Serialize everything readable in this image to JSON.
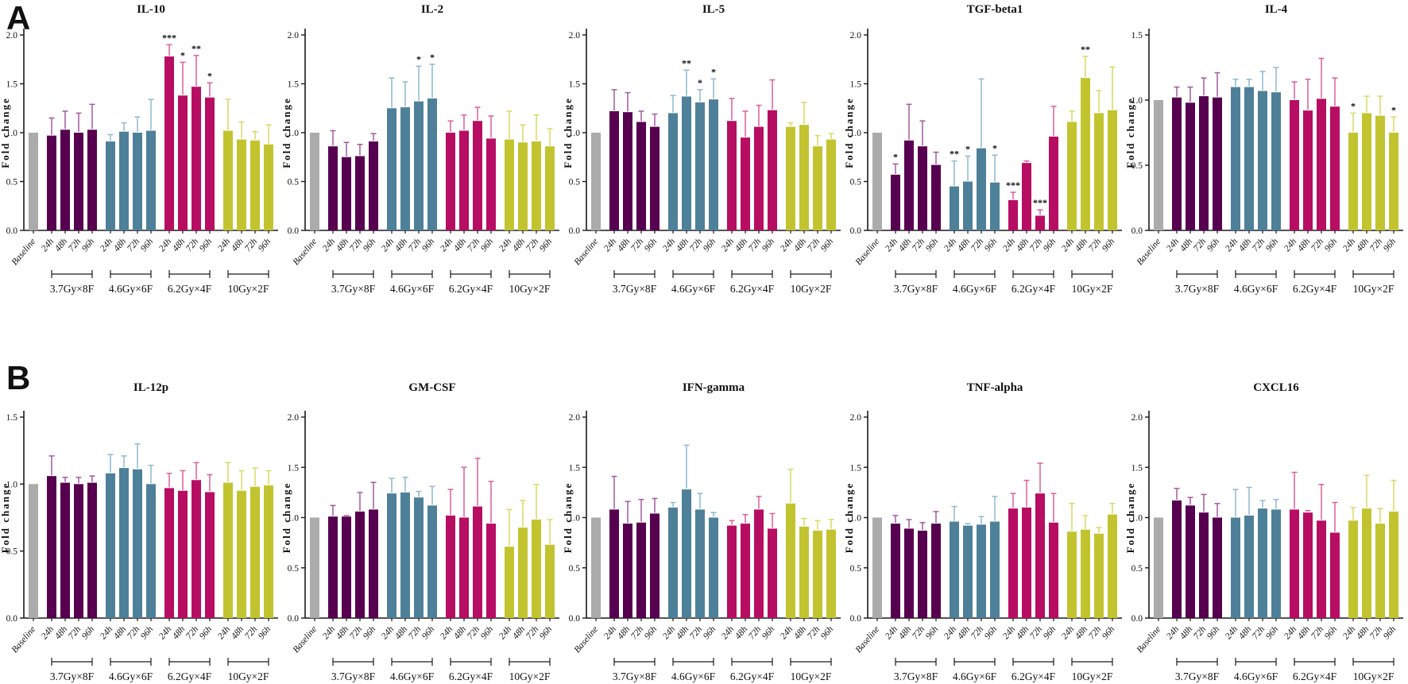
{
  "figure": {
    "panels": [
      {
        "label": "A"
      },
      {
        "label": "B"
      }
    ],
    "ylabel": "Fold change",
    "baseline_label": "Baseline",
    "time_labels": [
      "24h",
      "48h",
      "72h",
      "96h"
    ],
    "group_labels": [
      "3.7Gy×8F",
      "4.6Gy×6F",
      "6.2Gy×4F",
      "10Gy×2F"
    ],
    "colors": {
      "baseline_bar": "#ABABAB",
      "axis": "#1a1a1a",
      "groups": [
        {
          "bar": "#570050",
          "err": "#A35A9E"
        },
        {
          "bar": "#4E8099",
          "err": "#8FB9CD"
        },
        {
          "bar": "#B70D63",
          "err": "#DE5F97"
        },
        {
          "bar": "#C2C42F",
          "err": "#D8D963"
        }
      ]
    }
  },
  "chart_data": [
    {
      "type": "bar",
      "panel": "A",
      "title": "IL-10",
      "ylabel": "Fold change",
      "ylim": [
        0,
        2.0
      ],
      "yticks": [
        0.0,
        0.5,
        1.0,
        1.5,
        2.0
      ],
      "categories": [
        "Baseline",
        "24h",
        "48h",
        "72h",
        "96h"
      ],
      "baseline_value": 1.0,
      "series": [
        {
          "name": "3.7Gy×8F",
          "values": [
            0.97,
            1.03,
            1.0,
            1.03
          ],
          "errors": [
            0.18,
            0.19,
            0.2,
            0.26
          ],
          "sig": [
            "",
            "",
            "",
            ""
          ]
        },
        {
          "name": "4.6Gy×6F",
          "values": [
            0.91,
            1.01,
            1.0,
            1.02
          ],
          "errors": [
            0.07,
            0.09,
            0.16,
            0.32
          ],
          "sig": [
            "",
            "",
            "",
            ""
          ]
        },
        {
          "name": "6.2Gy×4F",
          "values": [
            1.78,
            1.38,
            1.47,
            1.36
          ],
          "errors": [
            0.12,
            0.34,
            0.32,
            0.15
          ],
          "sig": [
            "***",
            "*",
            "**",
            "*"
          ]
        },
        {
          "name": "10Gy×2F",
          "values": [
            1.02,
            0.93,
            0.92,
            0.88
          ],
          "errors": [
            0.32,
            0.18,
            0.09,
            0.2
          ],
          "sig": [
            "",
            "",
            "",
            ""
          ]
        }
      ]
    },
    {
      "type": "bar",
      "panel": "A",
      "title": "IL-2",
      "ylabel": "Fold change",
      "ylim": [
        0,
        2.0
      ],
      "yticks": [
        0.0,
        0.5,
        1.0,
        1.5,
        2.0
      ],
      "categories": [
        "Baseline",
        "24h",
        "48h",
        "72h",
        "96h"
      ],
      "baseline_value": 1.0,
      "series": [
        {
          "name": "3.7Gy×8F",
          "values": [
            0.86,
            0.75,
            0.76,
            0.91
          ],
          "errors": [
            0.16,
            0.15,
            0.12,
            0.08
          ],
          "sig": [
            "",
            "",
            "",
            ""
          ]
        },
        {
          "name": "4.6Gy×6F",
          "values": [
            1.25,
            1.26,
            1.32,
            1.35
          ],
          "errors": [
            0.31,
            0.26,
            0.36,
            0.35
          ],
          "sig": [
            "",
            "",
            "*",
            "*"
          ]
        },
        {
          "name": "6.2Gy×4F",
          "values": [
            1.0,
            1.02,
            1.12,
            0.94
          ],
          "errors": [
            0.12,
            0.16,
            0.14,
            0.23
          ],
          "sig": [
            "",
            "",
            "",
            ""
          ]
        },
        {
          "name": "10Gy×2F",
          "values": [
            0.93,
            0.9,
            0.91,
            0.86
          ],
          "errors": [
            0.29,
            0.18,
            0.27,
            0.18
          ],
          "sig": [
            "",
            "",
            "",
            ""
          ]
        }
      ]
    },
    {
      "type": "bar",
      "panel": "A",
      "title": "IL-5",
      "ylabel": "Fold change",
      "ylim": [
        0,
        2.0
      ],
      "yticks": [
        0.0,
        0.5,
        1.0,
        1.5,
        2.0
      ],
      "categories": [
        "Baseline",
        "24h",
        "48h",
        "72h",
        "96h"
      ],
      "baseline_value": 1.0,
      "series": [
        {
          "name": "3.7Gy×8F",
          "values": [
            1.22,
            1.21,
            1.11,
            1.06
          ],
          "errors": [
            0.22,
            0.2,
            0.11,
            0.13
          ],
          "sig": [
            "",
            "",
            "",
            ""
          ]
        },
        {
          "name": "4.6Gy×6F",
          "values": [
            1.2,
            1.37,
            1.31,
            1.34
          ],
          "errors": [
            0.18,
            0.27,
            0.13,
            0.21
          ],
          "sig": [
            "",
            "**",
            "*",
            "*"
          ]
        },
        {
          "name": "6.2Gy×4F",
          "values": [
            1.12,
            0.95,
            1.06,
            1.23
          ],
          "errors": [
            0.23,
            0.27,
            0.22,
            0.31
          ],
          "sig": [
            "",
            "",
            "",
            ""
          ]
        },
        {
          "name": "10Gy×2F",
          "values": [
            1.06,
            1.08,
            0.86,
            0.93
          ],
          "errors": [
            0.04,
            0.23,
            0.11,
            0.06
          ],
          "sig": [
            "",
            "",
            "",
            ""
          ]
        }
      ]
    },
    {
      "type": "bar",
      "panel": "A",
      "title": "TGF-beta1",
      "ylabel": "Fold change",
      "ylim": [
        0,
        2.0
      ],
      "yticks": [
        0.0,
        0.5,
        1.0,
        1.5,
        2.0
      ],
      "categories": [
        "Baseline",
        "24h",
        "48h",
        "72h",
        "96h"
      ],
      "baseline_value": 1.0,
      "series": [
        {
          "name": "3.7Gy×8F",
          "values": [
            0.57,
            0.92,
            0.86,
            0.67
          ],
          "errors": [
            0.11,
            0.37,
            0.26,
            0.13
          ],
          "sig": [
            "*",
            "",
            "",
            ""
          ]
        },
        {
          "name": "4.6Gy×6F",
          "values": [
            0.45,
            0.5,
            0.84,
            0.49
          ],
          "errors": [
            0.26,
            0.26,
            0.71,
            0.28
          ],
          "sig": [
            "**",
            "*",
            "",
            "*"
          ]
        },
        {
          "name": "6.2Gy×4F",
          "values": [
            0.31,
            0.69,
            0.15,
            0.96
          ],
          "errors": [
            0.08,
            0.02,
            0.06,
            0.31
          ],
          "sig": [
            "***",
            "",
            "***",
            ""
          ]
        },
        {
          "name": "10Gy×2F",
          "values": [
            1.11,
            1.56,
            1.2,
            1.23
          ],
          "errors": [
            0.11,
            0.22,
            0.23,
            0.44
          ],
          "sig": [
            "",
            "**",
            "",
            ""
          ]
        }
      ]
    },
    {
      "type": "bar",
      "panel": "A",
      "title": "IL-4",
      "ylabel": "Fold change",
      "ylim": [
        0,
        1.5
      ],
      "yticks": [
        0.0,
        0.5,
        1.0,
        1.5
      ],
      "categories": [
        "Baseline",
        "24h",
        "48h",
        "72h",
        "96h"
      ],
      "baseline_value": 1.0,
      "series": [
        {
          "name": "3.7Gy×8F",
          "values": [
            1.02,
            0.98,
            1.03,
            1.02
          ],
          "errors": [
            0.08,
            0.12,
            0.14,
            0.19
          ],
          "sig": [
            "",
            "",
            "",
            ""
          ]
        },
        {
          "name": "4.6Gy×6F",
          "values": [
            1.1,
            1.1,
            1.07,
            1.06
          ],
          "errors": [
            0.06,
            0.06,
            0.15,
            0.19
          ],
          "sig": [
            "",
            "",
            "",
            ""
          ]
        },
        {
          "name": "6.2Gy×4F",
          "values": [
            1.0,
            0.92,
            1.01,
            0.95
          ],
          "errors": [
            0.14,
            0.24,
            0.31,
            0.22
          ],
          "sig": [
            "",
            "",
            "",
            ""
          ]
        },
        {
          "name": "10Gy×2F",
          "values": [
            0.75,
            0.9,
            0.88,
            0.75
          ],
          "errors": [
            0.15,
            0.13,
            0.15,
            0.12
          ],
          "sig": [
            "*",
            "",
            "",
            "*"
          ]
        }
      ]
    },
    {
      "type": "bar",
      "panel": "B",
      "title": "IL-12p",
      "ylabel": "Fold change",
      "ylim": [
        0,
        1.5
      ],
      "yticks": [
        0.0,
        0.5,
        1.0,
        1.5
      ],
      "categories": [
        "Baseline",
        "24h",
        "48h",
        "72h",
        "96h"
      ],
      "baseline_value": 1.0,
      "series": [
        {
          "name": "3.7Gy×8F",
          "values": [
            1.06,
            1.01,
            1.0,
            1.01
          ],
          "errors": [
            0.15,
            0.04,
            0.05,
            0.05
          ],
          "sig": [
            "",
            "",
            "",
            ""
          ]
        },
        {
          "name": "4.6Gy×6F",
          "values": [
            1.08,
            1.12,
            1.11,
            1.0
          ],
          "errors": [
            0.14,
            0.09,
            0.19,
            0.14
          ],
          "sig": [
            "",
            "",
            "",
            ""
          ]
        },
        {
          "name": "6.2Gy×4F",
          "values": [
            0.97,
            0.95,
            1.03,
            0.94
          ],
          "errors": [
            0.11,
            0.15,
            0.13,
            0.13
          ],
          "sig": [
            "",
            "",
            "",
            ""
          ]
        },
        {
          "name": "10Gy×2F",
          "values": [
            1.01,
            0.95,
            0.98,
            0.99
          ],
          "errors": [
            0.15,
            0.15,
            0.14,
            0.11
          ],
          "sig": [
            "",
            "",
            "",
            ""
          ]
        }
      ]
    },
    {
      "type": "bar",
      "panel": "B",
      "title": "GM-CSF",
      "ylabel": "Fold change",
      "ylim": [
        0,
        2.0
      ],
      "yticks": [
        0.0,
        0.5,
        1.0,
        1.5,
        2.0
      ],
      "categories": [
        "Baseline",
        "24h",
        "48h",
        "72h",
        "96h"
      ],
      "baseline_value": 1.0,
      "series": [
        {
          "name": "3.7Gy×8F",
          "values": [
            1.01,
            1.01,
            1.06,
            1.08
          ],
          "errors": [
            0.11,
            0.01,
            0.19,
            0.27
          ],
          "sig": [
            "",
            "",
            "",
            ""
          ]
        },
        {
          "name": "4.6Gy×6F",
          "values": [
            1.24,
            1.25,
            1.2,
            1.12
          ],
          "errors": [
            0.15,
            0.15,
            0.06,
            0.19
          ],
          "sig": [
            "",
            "",
            "",
            ""
          ]
        },
        {
          "name": "6.2Gy×4F",
          "values": [
            1.02,
            1.0,
            1.11,
            0.94
          ],
          "errors": [
            0.26,
            0.5,
            0.48,
            0.42
          ],
          "sig": [
            "",
            "",
            "",
            ""
          ]
        },
        {
          "name": "10Gy×2F",
          "values": [
            0.71,
            0.9,
            0.98,
            0.73
          ],
          "errors": [
            0.37,
            0.27,
            0.35,
            0.25
          ],
          "sig": [
            "",
            "",
            "",
            ""
          ]
        }
      ]
    },
    {
      "type": "bar",
      "panel": "B",
      "title": "IFN-gamma",
      "ylabel": "Fold change",
      "ylim": [
        0,
        2.0
      ],
      "yticks": [
        0.0,
        0.5,
        1.0,
        1.5,
        2.0
      ],
      "categories": [
        "Baseline",
        "24h",
        "48h",
        "72h",
        "96h"
      ],
      "baseline_value": 1.0,
      "series": [
        {
          "name": "3.7Gy×8F",
          "values": [
            1.08,
            0.94,
            0.95,
            1.04
          ],
          "errors": [
            0.33,
            0.22,
            0.23,
            0.15
          ],
          "sig": [
            "",
            "",
            "",
            ""
          ]
        },
        {
          "name": "4.6Gy×6F",
          "values": [
            1.1,
            1.28,
            1.08,
            1.0
          ],
          "errors": [
            0.05,
            0.44,
            0.16,
            0.05
          ],
          "sig": [
            "",
            "",
            "",
            ""
          ]
        },
        {
          "name": "6.2Gy×4F",
          "values": [
            0.92,
            0.94,
            1.08,
            0.89
          ],
          "errors": [
            0.05,
            0.09,
            0.13,
            0.15
          ],
          "sig": [
            "",
            "",
            "",
            ""
          ]
        },
        {
          "name": "10Gy×2F",
          "values": [
            1.14,
            0.91,
            0.87,
            0.88
          ],
          "errors": [
            0.34,
            0.08,
            0.1,
            0.1
          ],
          "sig": [
            "",
            "",
            "",
            ""
          ]
        }
      ]
    },
    {
      "type": "bar",
      "panel": "B",
      "title": "TNF-alpha",
      "ylabel": "Fold change",
      "ylim": [
        0,
        2.0
      ],
      "yticks": [
        0.0,
        0.5,
        1.0,
        1.5,
        2.0
      ],
      "categories": [
        "Baseline",
        "24h",
        "48h",
        "72h",
        "96h"
      ],
      "baseline_value": 1.0,
      "series": [
        {
          "name": "3.7Gy×8F",
          "values": [
            0.94,
            0.89,
            0.87,
            0.94
          ],
          "errors": [
            0.08,
            0.09,
            0.08,
            0.12
          ],
          "sig": [
            "",
            "",
            "",
            ""
          ]
        },
        {
          "name": "4.6Gy×6F",
          "values": [
            0.96,
            0.92,
            0.93,
            0.96
          ],
          "errors": [
            0.15,
            0.02,
            0.08,
            0.25
          ],
          "sig": [
            "",
            "",
            "",
            ""
          ]
        },
        {
          "name": "6.2Gy×4F",
          "values": [
            1.09,
            1.1,
            1.24,
            0.95
          ],
          "errors": [
            0.15,
            0.27,
            0.3,
            0.29
          ],
          "sig": [
            "",
            "",
            "",
            ""
          ]
        },
        {
          "name": "10Gy×2F",
          "values": [
            0.86,
            0.88,
            0.84,
            1.03
          ],
          "errors": [
            0.28,
            0.14,
            0.06,
            0.11
          ],
          "sig": [
            "",
            "",
            "",
            ""
          ]
        }
      ]
    },
    {
      "type": "bar",
      "panel": "B",
      "title": "CXCL16",
      "ylabel": "Fold change",
      "ylim": [
        0,
        2.0
      ],
      "yticks": [
        0.0,
        0.5,
        1.0,
        1.5,
        2.0
      ],
      "categories": [
        "Baseline",
        "24h",
        "48h",
        "72h",
        "96h"
      ],
      "baseline_value": 1.0,
      "series": [
        {
          "name": "3.7Gy×8F",
          "values": [
            1.17,
            1.12,
            1.05,
            1.0
          ],
          "errors": [
            0.12,
            0.08,
            0.18,
            0.14
          ],
          "sig": [
            "",
            "",
            "",
            ""
          ]
        },
        {
          "name": "4.6Gy×6F",
          "values": [
            1.0,
            1.02,
            1.09,
            1.08
          ],
          "errors": [
            0.28,
            0.28,
            0.08,
            0.1
          ],
          "sig": [
            "",
            "",
            "",
            ""
          ]
        },
        {
          "name": "6.2Gy×4F",
          "values": [
            1.08,
            1.05,
            0.97,
            0.85
          ],
          "errors": [
            0.37,
            0.02,
            0.36,
            0.3
          ],
          "sig": [
            "",
            "",
            "",
            ""
          ]
        },
        {
          "name": "10Gy×2F",
          "values": [
            0.97,
            1.09,
            0.94,
            1.06
          ],
          "errors": [
            0.13,
            0.33,
            0.15,
            0.31
          ],
          "sig": [
            "",
            "",
            "",
            ""
          ]
        }
      ]
    }
  ]
}
